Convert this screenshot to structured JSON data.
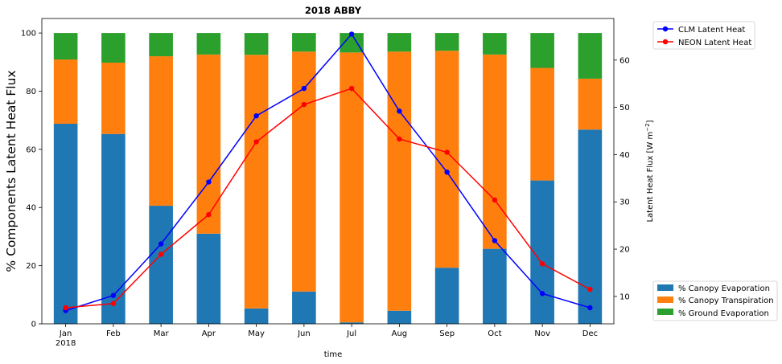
{
  "chart_data": {
    "type": "bar",
    "title": "2018 ABBY",
    "xlabel": "time",
    "ylabel_left": "% Components Latent Heat Flux",
    "ylabel_right": "Latent Heat Flux [W m$^{-2}$]",
    "ylabel_right_display": "Latent Heat Flux [W m",
    "ylabel_right_sup": "−2",
    "ylabel_right_close": "]",
    "categories": [
      "Jan",
      "Feb",
      "Mar",
      "Apr",
      "May",
      "Jun",
      "Jul",
      "Aug",
      "Sep",
      "Oct",
      "Nov",
      "Dec"
    ],
    "year_label": "2018",
    "ylim_left": [
      0,
      105
    ],
    "yticks_left": [
      0,
      20,
      40,
      60,
      80,
      100
    ],
    "ylim_right": [
      4.2,
      68.8
    ],
    "yticks_right": [
      10,
      20,
      30,
      40,
      50,
      60
    ],
    "stacked_series": [
      {
        "name": "% Canopy Evaporation",
        "color": "#1f77b4",
        "values": [
          68.8,
          65.3,
          40.6,
          31.0,
          5.3,
          11.1,
          0.5,
          4.5,
          19.3,
          25.8,
          49.3,
          66.8
        ]
      },
      {
        "name": "% Canopy Transpiration",
        "color": "#ff7f0e",
        "values": [
          22.1,
          24.5,
          51.4,
          61.6,
          87.2,
          82.5,
          92.8,
          89.1,
          74.6,
          66.8,
          38.7,
          17.5
        ]
      },
      {
        "name": "% Ground Evaporation",
        "color": "#2ca02c",
        "values": [
          9.1,
          10.2,
          8.0,
          7.4,
          7.5,
          6.4,
          6.7,
          6.4,
          6.1,
          7.4,
          12.0,
          15.7
        ]
      }
    ],
    "line_series": [
      {
        "name": "CLM Latent Heat",
        "color": "#0000ff",
        "values": [
          7.0,
          10.2,
          21.1,
          34.2,
          48.2,
          54.0,
          65.5,
          49.2,
          36.3,
          21.8,
          10.6,
          7.6
        ]
      },
      {
        "name": "NEON Latent Heat",
        "color": "#ff0000",
        "values": [
          7.6,
          8.5,
          18.9,
          27.3,
          42.7,
          50.6,
          54.0,
          43.3,
          40.5,
          30.4,
          16.9,
          11.5
        ]
      }
    ]
  }
}
